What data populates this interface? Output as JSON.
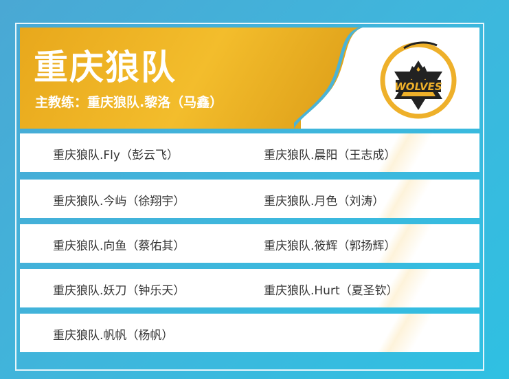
{
  "team": {
    "title": "重庆狼队",
    "coach": "主教练：重庆狼队.黎洛（马鑫）",
    "logo_text": "WOLVES"
  },
  "players": [
    [
      "重庆狼队.Fly（彭云飞）",
      "重庆狼队.晨阳（王志成）"
    ],
    [
      "重庆狼队.今屿（徐翔宇）",
      "重庆狼队.月色（刘涛）"
    ],
    [
      "重庆狼队.向鱼（蔡佑其）",
      "重庆狼队.筱辉（郭扬辉）"
    ],
    [
      "重庆狼队.妖刀（钟乐天）",
      "重庆狼队.Hurt（夏圣钦）"
    ],
    [
      "重庆狼队.帆帆（杨帆）",
      null
    ]
  ],
  "colors": {
    "gold": "#f0b528",
    "blue": "#3fb6dc"
  }
}
